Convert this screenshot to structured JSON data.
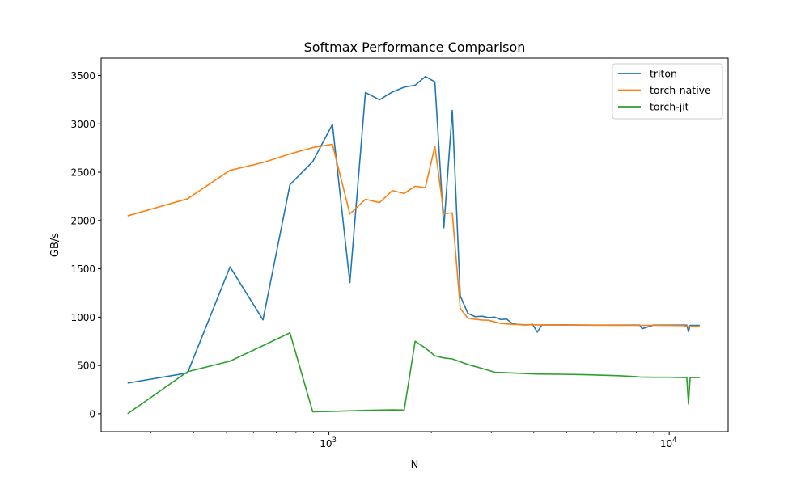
{
  "chart_data": {
    "type": "line",
    "title": "Softmax Performance Comparison",
    "xlabel": "N",
    "ylabel": "GB/s",
    "xscale": "log",
    "xlim": [
      214,
      14900
    ],
    "ylim": [
      -185,
      3680
    ],
    "x_ticks": [
      {
        "value": 1000,
        "base": "10",
        "exp": "3"
      },
      {
        "value": 10000,
        "base": "10",
        "exp": "4"
      }
    ],
    "y_ticks": [
      0,
      500,
      1000,
      1500,
      2000,
      2500,
      3000,
      3500
    ],
    "grid": false,
    "legend_position": "top-right",
    "series": [
      {
        "name": "triton",
        "color": "#1f77b4",
        "x": [
          256,
          384,
          512,
          640,
          768,
          896,
          1024,
          1152,
          1280,
          1408,
          1536,
          1664,
          1792,
          1920,
          2048,
          2176,
          2304,
          2432,
          2560,
          2688,
          2816,
          2944,
          3072,
          3200,
          3328,
          3456,
          3584,
          3712,
          3840,
          3968,
          4096,
          4224,
          4352,
          5000,
          6000,
          7000,
          8000,
          8192,
          8320,
          9000,
          10000,
          11000,
          11264,
          11392,
          11520,
          12288
        ],
        "y": [
          318,
          422,
          1520,
          972,
          2370,
          2610,
          2995,
          1358,
          3325,
          3250,
          3330,
          3380,
          3400,
          3490,
          3435,
          1925,
          3140,
          1220,
          1040,
          1005,
          1010,
          995,
          1000,
          975,
          980,
          935,
          925,
          920,
          920,
          925,
          845,
          920,
          920,
          920,
          918,
          918,
          918,
          918,
          880,
          918,
          918,
          918,
          918,
          850,
          915,
          915
        ]
      },
      {
        "name": "torch-native",
        "color": "#ff7f0e",
        "x": [
          256,
          384,
          512,
          640,
          768,
          896,
          1024,
          1152,
          1280,
          1408,
          1536,
          1664,
          1792,
          1920,
          2048,
          2176,
          2304,
          2432,
          2560,
          2688,
          2816,
          2944,
          3072,
          3200,
          3328,
          3456,
          3584,
          3712,
          3840,
          4096,
          5000,
          6000,
          7000,
          8000,
          9000,
          10000,
          11000,
          11392,
          12288
        ],
        "y": [
          2048,
          2225,
          2520,
          2600,
          2690,
          2755,
          2790,
          2068,
          2220,
          2185,
          2310,
          2280,
          2355,
          2340,
          2770,
          2070,
          2080,
          1090,
          990,
          978,
          970,
          968,
          950,
          935,
          930,
          925,
          925,
          922,
          922,
          920,
          918,
          917,
          916,
          915,
          915,
          914,
          912,
          905,
          905
        ]
      },
      {
        "name": "torch-jit",
        "color": "#2ca02c",
        "x": [
          256,
          384,
          512,
          640,
          768,
          896,
          1024,
          1280,
          1536,
          1664,
          1792,
          1920,
          2048,
          2176,
          2304,
          2560,
          2816,
          3072,
          3328,
          3584,
          3840,
          4096,
          5000,
          5500,
          6000,
          6200,
          7000,
          8000,
          8192,
          9000,
          10000,
          11000,
          11264,
          11392,
          11520,
          12288
        ],
        "y": [
          0,
          435,
          545,
          705,
          838,
          20,
          25,
          35,
          40,
          38,
          750,
          680,
          600,
          578,
          568,
          510,
          470,
          430,
          425,
          420,
          415,
          412,
          408,
          405,
          402,
          400,
          395,
          385,
          380,
          378,
          378,
          375,
          375,
          100,
          375,
          375
        ]
      }
    ]
  }
}
